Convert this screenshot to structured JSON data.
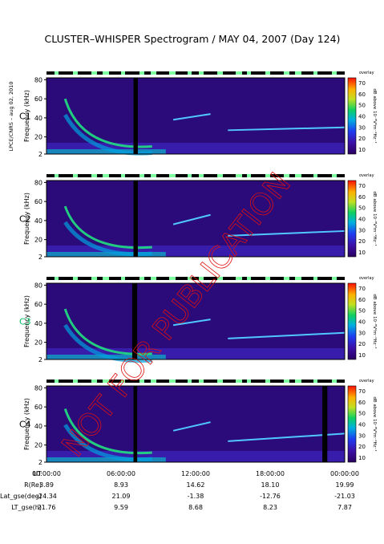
{
  "title": "CLUSTER–WHISPER Spectrogram / MAY 04, 2007 (Day 124)",
  "credit": "LPCE/CNRS – aug 02, 2010",
  "watermark": "NOT FOR PUBLICATION",
  "colors": {
    "spacecraft_label": "#000000",
    "c3_label": "#00c060",
    "watermark": "#e01010"
  },
  "chart_data": [
    {
      "type": "heatmap",
      "spacecraft": "C1",
      "ylabel": "Frequency (kHz)",
      "yticks": [
        2,
        20,
        40,
        60,
        80
      ],
      "ylim": [
        2,
        82
      ],
      "xlim_hours": [
        0,
        24
      ],
      "colorbar": {
        "ticks": [
          10,
          20,
          30,
          40,
          50,
          60,
          70
        ],
        "label": "dB above 10⁻⁸V²m⁻²Hz⁻¹",
        "mode_label": "overlay"
      },
      "data_gap_hours": [
        [
          7.0,
          7.35
        ]
      ],
      "features": [
        {
          "kind": "dispersive_emission",
          "start_hour": 1.5,
          "end_hour": 8.5,
          "start_khz": 60,
          "end_khz": 10
        },
        {
          "kind": "plasma_line",
          "start_hour": 10.2,
          "end_hour": 13.2,
          "start_khz": 38,
          "end_khz": 44
        },
        {
          "kind": "plasma_line",
          "start_hour": 14.6,
          "end_hour": 24,
          "start_khz": 27,
          "end_khz": 30
        }
      ]
    },
    {
      "type": "heatmap",
      "spacecraft": "C2",
      "ylabel": "Frequency (kHz)",
      "yticks": [
        2,
        20,
        40,
        60,
        80
      ],
      "ylim": [
        2,
        82
      ],
      "xlim_hours": [
        0,
        24
      ],
      "colorbar": {
        "ticks": [
          10,
          20,
          30,
          40,
          50,
          60,
          70
        ],
        "label": "dB above 10⁻⁸V²m⁻²Hz⁻¹",
        "mode_label": "overlay"
      },
      "data_gap_hours": [
        [
          7.0,
          7.35
        ]
      ],
      "features": [
        {
          "kind": "dispersive_emission",
          "start_hour": 1.5,
          "end_hour": 8.5,
          "start_khz": 55,
          "end_khz": 12
        },
        {
          "kind": "plasma_line",
          "start_hour": 10.2,
          "end_hour": 13.2,
          "start_khz": 36,
          "end_khz": 46
        },
        {
          "kind": "plasma_line",
          "start_hour": 14.6,
          "end_hour": 24,
          "start_khz": 24,
          "end_khz": 29
        }
      ]
    },
    {
      "type": "heatmap",
      "spacecraft": "C3",
      "ylabel": "Frequency (kHz)",
      "yticks": [
        2,
        20,
        40,
        60,
        80
      ],
      "ylim": [
        2,
        82
      ],
      "xlim_hours": [
        0,
        24
      ],
      "colorbar": {
        "ticks": [
          10,
          20,
          30,
          40,
          50,
          60,
          70
        ],
        "label": "dB above 10⁻⁸V²m⁻²Hz⁻¹",
        "mode_label": "overlay"
      },
      "data_gap_hours": [
        [
          6.9,
          7.3
        ]
      ],
      "features": [
        {
          "kind": "dispersive_emission",
          "start_hour": 1.5,
          "end_hour": 8.5,
          "start_khz": 55,
          "end_khz": 8
        },
        {
          "kind": "plasma_line",
          "start_hour": 10.2,
          "end_hour": 13.2,
          "start_khz": 38,
          "end_khz": 44
        },
        {
          "kind": "plasma_line",
          "start_hour": 14.6,
          "end_hour": 24,
          "start_khz": 24,
          "end_khz": 30
        }
      ]
    },
    {
      "type": "heatmap",
      "spacecraft": "C4",
      "ylabel": "Frequency (kHz)",
      "yticks": [
        2,
        20,
        40,
        60,
        80
      ],
      "ylim": [
        2,
        82
      ],
      "xlim_hours": [
        0,
        24
      ],
      "colorbar": {
        "ticks": [
          10,
          20,
          30,
          40,
          50,
          60,
          70
        ],
        "label": "dB above 10⁻⁸V²m⁻²Hz⁻¹",
        "mode_label": "overlay"
      },
      "data_gap_hours": [
        [
          7.0,
          7.3
        ],
        [
          22.2,
          22.6
        ]
      ],
      "features": [
        {
          "kind": "dispersive_emission",
          "start_hour": 1.5,
          "end_hour": 8.5,
          "start_khz": 58,
          "end_khz": 12
        },
        {
          "kind": "plasma_line",
          "start_hour": 10.2,
          "end_hour": 13.2,
          "start_khz": 35,
          "end_khz": 44
        },
        {
          "kind": "plasma_line",
          "start_hour": 14.6,
          "end_hour": 24,
          "start_khz": 24,
          "end_khz": 32
        }
      ]
    }
  ],
  "orbit_table": {
    "rows": [
      {
        "label": "UT",
        "values": [
          "00:00:00",
          "06:00:00",
          "12:00:00",
          "18:00:00",
          "00:00:00"
        ]
      },
      {
        "label": "R(Re)",
        "values": [
          "3.89",
          "8.93",
          "14.62",
          "18.10",
          "19.99"
        ]
      },
      {
        "label": "Lat_gse(deg)",
        "values": [
          "-24.34",
          "21.09",
          "-1.38",
          "-12.76",
          "-21.03"
        ]
      },
      {
        "label": "LT_gse(h)",
        "values": [
          "21.76",
          "9.59",
          "8.68",
          "8.23",
          "7.87"
        ]
      }
    ]
  }
}
